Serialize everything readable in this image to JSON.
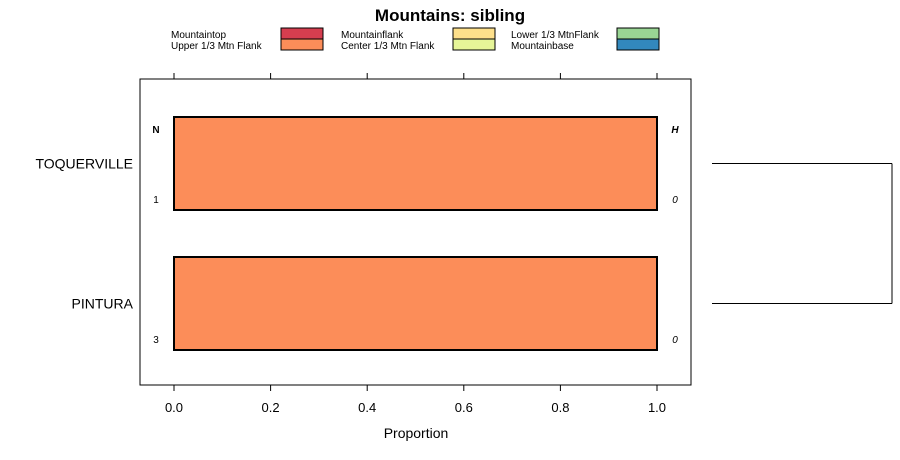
{
  "chart_data": {
    "type": "bar",
    "orientation": "horizontal",
    "stacked": true,
    "title": "Mountains: sibling",
    "xlabel": "Proportion",
    "ylabel": "",
    "xlim": [
      0,
      1
    ],
    "xticks": [
      "0.0",
      "0.2",
      "0.4",
      "0.6",
      "0.8",
      "1.0"
    ],
    "categories": [
      "TOQUERVILLE",
      "PINTURA"
    ],
    "series": [
      {
        "name": "Mountaintop",
        "color": "#d53e4f",
        "values": [
          0,
          0
        ]
      },
      {
        "name": "Upper 1/3 Mtn Flank",
        "color": "#fc8d59",
        "values": [
          1.0,
          1.0
        ]
      },
      {
        "name": "Mountainflank",
        "color": "#fee08b",
        "values": [
          0,
          0
        ]
      },
      {
        "name": "Center 1/3 Mtn Flank",
        "color": "#e6f598",
        "values": [
          0,
          0
        ]
      },
      {
        "name": "Lower 1/3 MtnFlank",
        "color": "#99d594",
        "values": [
          0,
          0
        ]
      },
      {
        "name": "Mountainbase",
        "color": "#3288bd",
        "values": [
          0,
          0
        ]
      }
    ],
    "legend_rows": [
      [
        "Mountaintop",
        "Mountainflank",
        "Lower 1/3 MtnFlank"
      ],
      [
        "Upper 1/3 Mtn Flank",
        "Center 1/3 Mtn Flank",
        "Mountainbase"
      ]
    ],
    "n_header": "N",
    "h_header": "H",
    "n_values": [
      "1",
      "3"
    ],
    "h_values": [
      "0",
      "0"
    ],
    "legend_position": "top",
    "dendrogram": true
  }
}
